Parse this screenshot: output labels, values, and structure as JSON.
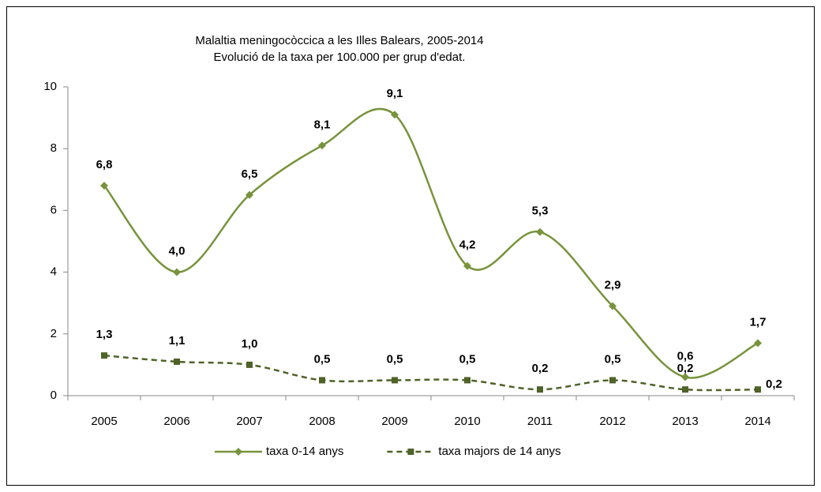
{
  "chart_data": {
    "type": "line",
    "title": "Malaltia meningocòccica a les Illes Balears, 2005-2014",
    "subtitle": "Evolució de la taxa per 100.000 per grup d'edat.",
    "categories": [
      "2005",
      "2006",
      "2007",
      "2008",
      "2009",
      "2010",
      "2011",
      "2012",
      "2013",
      "2014"
    ],
    "series": [
      {
        "name": "taxa 0-14 anys",
        "color": "#77933c",
        "style": "solid",
        "marker": "diamond",
        "values": [
          6.8,
          4.0,
          6.5,
          8.1,
          9.1,
          4.2,
          5.3,
          2.9,
          0.6,
          1.7
        ],
        "value_labels": [
          "6,8",
          "4,0",
          "6,5",
          "8,1",
          "9,1",
          "4,2",
          "5,3",
          "2,9",
          "0,6",
          "1,7"
        ]
      },
      {
        "name": "taxa majors de 14 anys",
        "color": "#4f6228",
        "style": "dashed",
        "marker": "square",
        "values": [
          1.3,
          1.1,
          1.0,
          0.5,
          0.5,
          0.5,
          0.2,
          0.5,
          0.2,
          0.2
        ],
        "value_labels": [
          "1,3",
          "1,1",
          "1,0",
          "0,5",
          "0,5",
          "0,5",
          "0,2",
          "0,5",
          "0,2",
          "0,2"
        ]
      }
    ],
    "ylim": [
      0,
      10
    ],
    "yticks": [
      0,
      2,
      4,
      6,
      8,
      10
    ],
    "grid": false,
    "smooth": true,
    "legend": "bottom"
  }
}
